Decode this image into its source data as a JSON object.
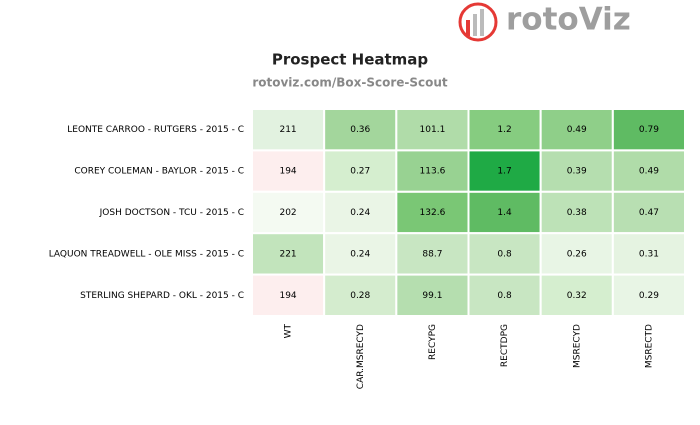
{
  "logo": "rotoViz",
  "chart_data": {
    "type": "heatmap",
    "title": "Prospect Heatmap",
    "subtitle": "rotoviz.com/Box-Score-Scout",
    "rows": [
      "LEONTE CARROO - RUTGERS - 2015 - C",
      "COREY COLEMAN - BAYLOR - 2015 - C",
      "JOSH DOCTSON - TCU - 2015 - C",
      "LAQUON TREADWELL - OLE MISS - 2015 - C",
      "STERLING SHEPARD - OKL - 2015 - C"
    ],
    "columns": [
      "WT",
      "CAR.MSRECYD",
      "RECYPG",
      "RECTDPG",
      "MSRECYD",
      "MSRECTD"
    ],
    "values": [
      [
        211,
        0.36,
        101.1,
        1.2,
        0.49,
        0.79
      ],
      [
        194,
        0.27,
        113.6,
        1.7,
        0.39,
        0.49
      ],
      [
        202,
        0.24,
        132.6,
        1.4,
        0.38,
        0.47
      ],
      [
        221,
        0.24,
        88.7,
        0.8,
        0.26,
        0.31
      ],
      [
        194,
        0.28,
        99.1,
        0.8,
        0.32,
        0.29
      ]
    ],
    "colors": [
      [
        "#e2f2e0",
        "#a3d69c",
        "#b0dca9",
        "#86cc80",
        "#8fcf89",
        "#5fbb63"
      ],
      [
        "#fdeeee",
        "#d5eecf",
        "#98d292",
        "#1faa45",
        "#b5deaf",
        "#b0dca9"
      ],
      [
        "#f4faf2",
        "#eaf5e6",
        "#7ac775",
        "#5fbb63",
        "#bde2b7",
        "#b8dfb2"
      ],
      [
        "#c2e4bc",
        "#eaf5e6",
        "#c8e6c2",
        "#c8e6c2",
        "#e8f5e5",
        "#e5f3e1"
      ],
      [
        "#fdeeee",
        "#d4ecce",
        "#b5deaf",
        "#c8e6c2",
        "#d5eecf",
        "#e8f5e5"
      ]
    ]
  }
}
